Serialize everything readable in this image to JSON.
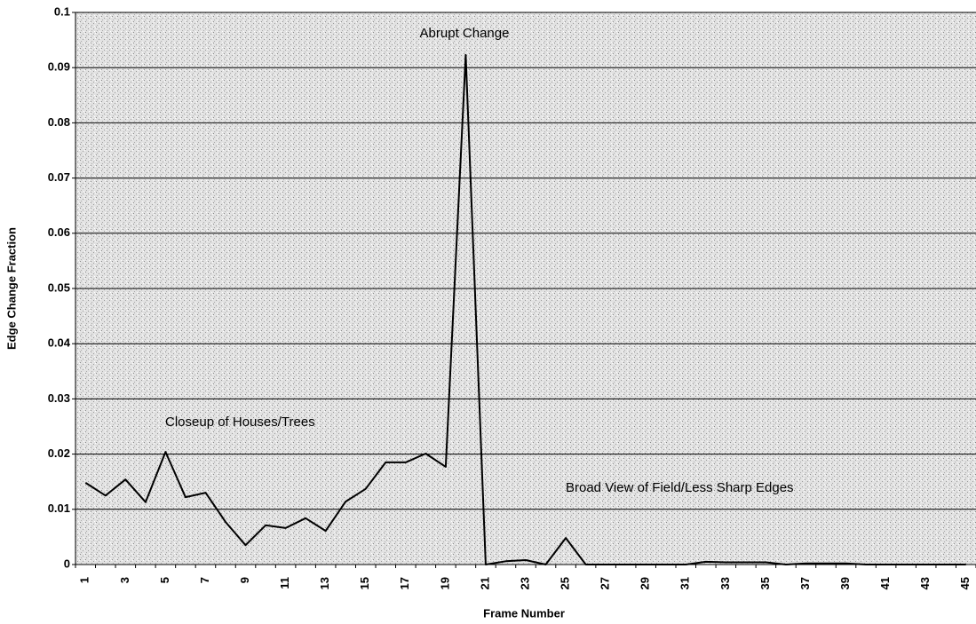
{
  "chart_data": {
    "type": "line",
    "y_label": "Edge Change Fraction",
    "x_label": "Frame Number",
    "annotations": [
      "Abrupt Change",
      "Closeup of Houses/Trees",
      "Broad View of Field/Less Sharp Edges"
    ],
    "categories": [
      "1",
      null,
      "3",
      null,
      "5",
      null,
      "7",
      null,
      "9",
      null,
      "11",
      null,
      "13",
      null,
      "15",
      null,
      "17",
      null,
      "19",
      null,
      "21",
      null,
      "23",
      null,
      "25",
      null,
      "27",
      null,
      "29",
      null,
      "31",
      null,
      "33",
      null,
      "35",
      null,
      "37",
      null,
      "39",
      null,
      "41",
      null,
      "43",
      null,
      "45"
    ],
    "values": [
      0.0148,
      0.0125,
      0.0154,
      0.0113,
      0.0204,
      0.0122,
      0.013,
      0.0077,
      0.0035,
      0.0071,
      0.0066,
      0.0084,
      0.0061,
      0.0114,
      0.0137,
      0.0185,
      0.0185,
      0.0201,
      0.0177,
      0.0923,
      0,
      0.0006,
      0.0008,
      0,
      0.0048,
      0,
      0,
      0,
      0,
      0,
      0,
      0.0005,
      0.0004,
      0.0004,
      0.0004,
      0,
      0.0002,
      0.0002,
      0.0002,
      0,
      0,
      0,
      0,
      0,
      0
    ],
    "color": "#000000",
    "ylim": [
      0,
      0.1
    ],
    "yticks": [
      0,
      0.01,
      0.02,
      0.03,
      0.04,
      0.05,
      0.06,
      0.07,
      0.08,
      0.09,
      0.1
    ],
    "grid": true
  }
}
